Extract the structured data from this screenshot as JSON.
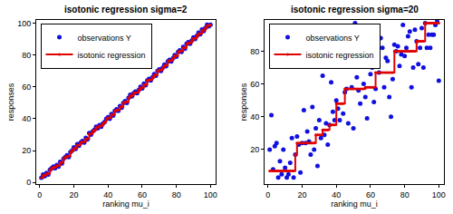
{
  "chart_data": [
    {
      "type": "scatter",
      "title": "isotonic regression sigma=2",
      "x_label": "ranking mu_i",
      "y_label": "responses",
      "x": [
        1,
        2,
        3,
        4,
        5,
        6,
        7,
        8,
        9,
        10,
        11,
        12,
        13,
        14,
        15,
        16,
        17,
        18,
        19,
        20,
        21,
        22,
        23,
        24,
        25,
        26,
        27,
        28,
        29,
        30,
        31,
        32,
        33,
        34,
        35,
        36,
        37,
        38,
        39,
        40,
        41,
        42,
        43,
        44,
        45,
        46,
        47,
        48,
        49,
        50,
        51,
        52,
        53,
        54,
        55,
        56,
        57,
        58,
        59,
        60,
        61,
        62,
        63,
        64,
        65,
        66,
        67,
        68,
        69,
        70,
        71,
        72,
        73,
        74,
        75,
        76,
        77,
        78,
        79,
        80,
        81,
        82,
        83,
        84,
        85,
        86,
        87,
        88,
        89,
        90,
        91,
        92,
        93,
        94,
        95,
        96,
        97,
        98,
        99,
        100
      ],
      "series": [
        {
          "name": "observations Y",
          "type": "scatter",
          "color": "#1010e0",
          "marker": "circle",
          "values": [
            3,
            5,
            4,
            6,
            5,
            8,
            9,
            10,
            9,
            11,
            10,
            13,
            12,
            15,
            16,
            17,
            16,
            19,
            20,
            22,
            21,
            24,
            23,
            25,
            26,
            25,
            28,
            27,
            31,
            30,
            32,
            33,
            35,
            34,
            36,
            35,
            37,
            38,
            40,
            41,
            40,
            43,
            42,
            45,
            46,
            45,
            48,
            47,
            50,
            51,
            50,
            53,
            55,
            54,
            56,
            57,
            56,
            58,
            60,
            59,
            62,
            61,
            64,
            65,
            64,
            66,
            68,
            67,
            70,
            71,
            70,
            72,
            74,
            73,
            76,
            77,
            76,
            78,
            80,
            79,
            82,
            83,
            82,
            85,
            84,
            87,
            88,
            87,
            89,
            91,
            90,
            92,
            94,
            93,
            96,
            95,
            97,
            99,
            98,
            99
          ]
        },
        {
          "name": "isotonic regression",
          "type": "line",
          "color": "#e00000",
          "marker": "circle",
          "line_style": "steps",
          "values": [
            3,
            4.5,
            4.5,
            5.5,
            5.5,
            8,
            9,
            9.5,
            9.5,
            10.5,
            10.5,
            12.5,
            12.5,
            15,
            16,
            16.5,
            16.5,
            19,
            20,
            21.5,
            21.5,
            23.5,
            23.5,
            25,
            25.5,
            25.5,
            27.5,
            27.5,
            30.5,
            30.5,
            32,
            33,
            34.5,
            34.5,
            35.5,
            35.5,
            37,
            38,
            40,
            40.5,
            40.5,
            42.5,
            42.5,
            45,
            45.5,
            45.5,
            47.5,
            47.5,
            50,
            50.5,
            50.5,
            53,
            54.5,
            54.5,
            56,
            56.5,
            56.5,
            58,
            59.5,
            59.5,
            61.5,
            61.5,
            64,
            64.5,
            64.5,
            66,
            67.5,
            67.5,
            70,
            70.5,
            70.5,
            72,
            73.5,
            73.5,
            76,
            76.5,
            76.5,
            78,
            79.5,
            79.5,
            82,
            82.5,
            82.5,
            84.5,
            84.5,
            87,
            87.5,
            87.5,
            89,
            90.5,
            90.5,
            92,
            93.5,
            93.5,
            95.5,
            95.5,
            97,
            98.5,
            98.5,
            99
          ]
        }
      ],
      "xlim": [
        -2,
        103
      ],
      "xticks": [
        0,
        20,
        40,
        60,
        80,
        100
      ],
      "ylim": [
        -1,
        102
      ],
      "yticks": [
        0,
        20,
        40,
        60,
        80,
        100
      ],
      "legend": "top left",
      "grid": false
    },
    {
      "type": "scatter",
      "title": "isotonic regression sigma=20",
      "x_label": "ranking mu_i",
      "y_label": "responses",
      "x": [
        1,
        2,
        3,
        4,
        5,
        6,
        7,
        8,
        9,
        10,
        11,
        12,
        13,
        14,
        15,
        16,
        17,
        18,
        19,
        20,
        21,
        22,
        23,
        24,
        25,
        26,
        27,
        28,
        29,
        30,
        31,
        32,
        33,
        34,
        35,
        36,
        37,
        38,
        39,
        40,
        41,
        42,
        43,
        44,
        45,
        46,
        47,
        48,
        49,
        50,
        51,
        52,
        53,
        54,
        55,
        56,
        57,
        58,
        59,
        60,
        61,
        62,
        63,
        64,
        65,
        66,
        67,
        68,
        69,
        70,
        71,
        72,
        73,
        74,
        75,
        76,
        77,
        78,
        79,
        80,
        81,
        82,
        83,
        84,
        85,
        86,
        87,
        88,
        89,
        90,
        91,
        92,
        93,
        94,
        95,
        96,
        97,
        98,
        99,
        100
      ],
      "series": [
        {
          "name": "observations Y",
          "type": "scatter",
          "color": "#1010e0",
          "marker": "circle",
          "values": [
            20,
            41,
            8,
            22,
            24,
            3,
            13,
            5,
            20,
            9,
            3,
            5,
            12,
            27,
            3,
            17,
            28,
            23,
            6,
            24,
            44,
            24,
            31,
            25,
            17,
            46,
            20,
            33,
            10,
            38,
            27,
            65,
            29,
            36,
            23,
            35,
            61,
            43,
            38,
            50,
            45,
            38,
            80,
            42,
            55,
            57,
            36,
            75,
            58,
            33,
            97,
            64,
            56,
            48,
            73,
            60,
            52,
            39,
            95,
            66,
            70,
            49,
            57,
            73,
            67,
            88,
            82,
            58,
            76,
            74,
            52,
            40,
            63,
            84,
            80,
            83,
            71,
            78,
            96,
            77,
            82,
            89,
            92,
            58,
            70,
            93,
            86,
            72,
            82,
            94,
            70,
            97,
            82,
            90,
            82,
            90,
            90,
            96,
            98,
            62
          ]
        },
        {
          "name": "isotonic regression",
          "type": "line",
          "color": "#e00000",
          "marker": "circle",
          "line_style": "steps",
          "values": [
            7,
            7,
            7,
            7,
            7,
            7,
            7,
            7,
            7,
            7,
            7,
            7,
            7,
            7,
            7,
            17,
            24,
            24,
            24,
            24,
            24,
            24,
            24,
            24,
            24,
            24,
            24,
            29,
            29,
            29,
            29,
            32,
            32,
            32,
            32,
            35,
            35,
            35,
            35,
            48,
            48,
            48,
            48,
            48,
            57,
            57,
            57,
            57,
            57,
            57,
            57,
            57,
            57,
            57,
            57,
            57,
            58,
            58,
            58,
            58,
            58,
            58,
            67,
            67,
            67,
            67,
            67,
            67,
            67,
            67,
            67,
            67,
            67,
            80,
            80,
            80,
            80,
            80,
            80,
            80,
            80,
            80,
            80,
            80,
            80,
            80,
            86,
            86,
            86,
            86,
            86,
            97,
            97,
            97,
            97,
            97,
            97,
            97,
            97,
            97
          ]
        }
      ],
      "xlim": [
        -2,
        103
      ],
      "xticks": [
        0,
        20,
        40,
        60,
        80,
        100
      ],
      "ylim": [
        -1,
        99
      ],
      "yticks": [
        20,
        40,
        60,
        80
      ],
      "legend": "top left",
      "grid": false
    }
  ]
}
